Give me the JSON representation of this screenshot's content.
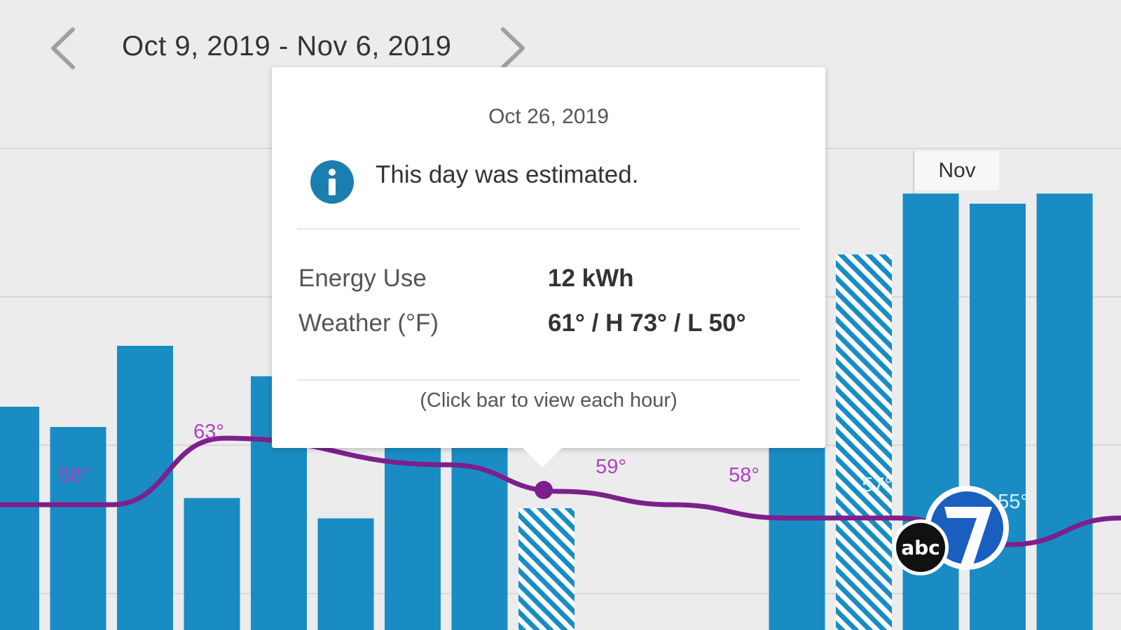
{
  "header": {
    "date_range": "Oct 9, 2019 - Nov 6, 2019",
    "prev_icon": "chevron-left-icon",
    "next_icon": "chevron-right-icon"
  },
  "tooltip": {
    "date": "Oct 26, 2019",
    "icon": "info-icon",
    "message": "This day was estimated.",
    "energy_label": "Energy Use",
    "energy_value": "12 kWh",
    "weather_label": "Weather (°F)",
    "weather_value": "61° / H 73° / L 50°",
    "hint": "(Click bar to view each hour)"
  },
  "colors": {
    "bar": "#1a8cc4",
    "line": "#7d1f8c",
    "temp_label": "#b040c0",
    "info_icon": "#1a7fb0"
  },
  "chart_data": {
    "type": "bar",
    "month_marker": "Nov",
    "bars": [
      {
        "value": 22,
        "estimated": false
      },
      {
        "value": 20,
        "estimated": false
      },
      {
        "value": 28,
        "estimated": false
      },
      {
        "value": 13,
        "estimated": false
      },
      {
        "value": 25,
        "estimated": false
      },
      {
        "value": 11,
        "estimated": false
      },
      {
        "value": 18,
        "estimated": false
      },
      {
        "value": 18,
        "estimated": false
      },
      {
        "value": 12,
        "estimated": true
      },
      {
        "value": 42,
        "estimated": false
      },
      {
        "value": 37,
        "estimated": true
      },
      {
        "value": 43,
        "estimated": false
      },
      {
        "value": 42,
        "estimated": false
      },
      {
        "value": 43,
        "estimated": false
      }
    ],
    "temperature_line": [
      {
        "x": 0,
        "temp": 58
      },
      {
        "x": 2,
        "temp": 58
      },
      {
        "x": 4,
        "temp": 63
      },
      {
        "x": 8,
        "temp": 61
      },
      {
        "x": 10,
        "temp": 59
      },
      {
        "x": 12,
        "temp": 58
      },
      {
        "x": 14,
        "temp": 57
      },
      {
        "x": 16,
        "temp": 57
      },
      {
        "x": 18,
        "temp": 55
      },
      {
        "x": 20,
        "temp": 57
      }
    ],
    "temperature_labels": [
      "58°",
      "63°",
      "59°",
      "58°",
      "57°",
      "55°"
    ],
    "selected_temp": "61°"
  }
}
